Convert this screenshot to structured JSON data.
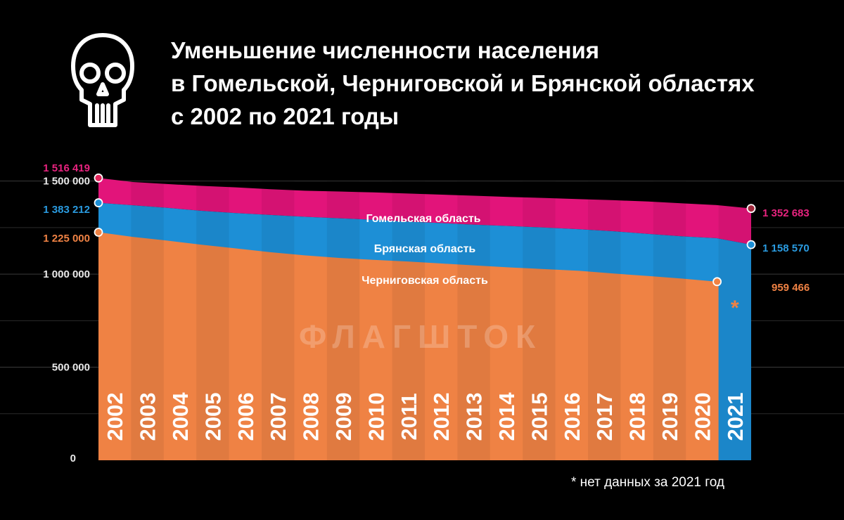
{
  "header": {
    "title_lines": [
      "Уменьшение численности населения",
      "в Гомельской, Черниговской и Брянской областях",
      "с 2002 по 2021 годы"
    ],
    "icon": "skull-icon",
    "watermark": "ФЛАГШТОК"
  },
  "footnote": "* нет данных за 2021 год",
  "chart_data": {
    "type": "area",
    "stacked": true,
    "x": [
      "2002",
      "2003",
      "2004",
      "2005",
      "2006",
      "2007",
      "2008",
      "2009",
      "2010",
      "2011",
      "2012",
      "2013",
      "2014",
      "2015",
      "2016",
      "2017",
      "2018",
      "2019",
      "2020",
      "2021"
    ],
    "y_ticks": [
      {
        "value": 0,
        "label": "0"
      },
      {
        "value": 500000,
        "label": "500 000"
      },
      {
        "value": 1000000,
        "label": "1 000 000"
      },
      {
        "value": 1500000,
        "label": "1 500 000"
      }
    ],
    "ylim": [
      0,
      1510000
    ],
    "grid": true,
    "series": [
      {
        "name": "Черниговская область",
        "color": "#ef8244",
        "label_color": "#ef8244",
        "values": [
          1225000,
          1200000,
          1180000,
          1158000,
          1138000,
          1118000,
          1101000,
          1087000,
          1077000,
          1068000,
          1057000,
          1046000,
          1036000,
          1027000,
          1018000,
          1003000,
          990000,
          976000,
          959466,
          null
        ],
        "start_label": "1 225 000",
        "end_label": "959 466",
        "no_data_mark": "*"
      },
      {
        "name": "Брянская область",
        "color": "#1d8fd6",
        "label_color": "#2a9be0",
        "top_values": [
          1383212,
          1370000,
          1356000,
          1340000,
          1328000,
          1318000,
          1308000,
          1300000,
          1292000,
          1282000,
          1274000,
          1265000,
          1258000,
          1250000,
          1241000,
          1230000,
          1216000,
          1203000,
          1193000,
          1158570
        ],
        "start_label": "1 383 212",
        "end_label": "1 158 570"
      },
      {
        "name": "Гомельская область",
        "color": "#e2147a",
        "label_color": "#e8237f",
        "top_values": [
          1516419,
          1495000,
          1484000,
          1474000,
          1466000,
          1456000,
          1448000,
          1444000,
          1439000,
          1433000,
          1427000,
          1421000,
          1414000,
          1409000,
          1403000,
          1397000,
          1390000,
          1380000,
          1371000,
          1352683
        ],
        "start_label": "1 516 419",
        "end_label": "1 352 683"
      }
    ]
  }
}
